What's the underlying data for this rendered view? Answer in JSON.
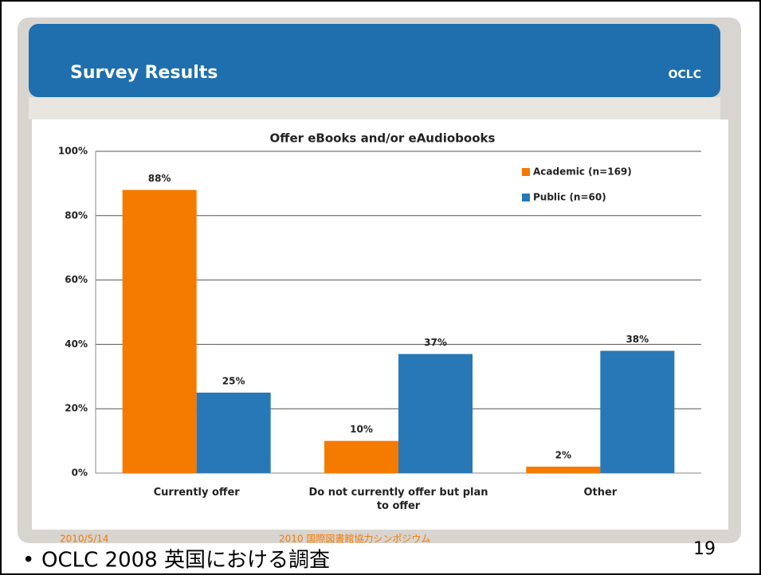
{
  "slide": {
    "title": "Survey Results",
    "logo": "OCLC",
    "date": "2010/5/14",
    "footer": "2010 国際図書館協力シンポジウム",
    "page": "19",
    "bullet": "OCLC 2008 英国における調査"
  },
  "chart_data": {
    "type": "bar",
    "title": "Offer eBooks and/or eAudiobooks",
    "categories": [
      "Currently offer",
      "Do not currently offer but plan to offer",
      "Other"
    ],
    "series": [
      {
        "name": "Academic (n=169)",
        "color": "#f47a00",
        "values": [
          88,
          10,
          2
        ],
        "value_labels": [
          "88%",
          "10%",
          "2%"
        ]
      },
      {
        "name": "Public (n=60)",
        "color": "#2878b8",
        "values": [
          25,
          37,
          38
        ],
        "value_labels": [
          "25%",
          "37%",
          "38%"
        ]
      }
    ],
    "ylim": [
      0,
      100
    ],
    "yticks": [
      {
        "value": 0,
        "label": "0%"
      },
      {
        "value": 20,
        "label": "20%"
      },
      {
        "value": 40,
        "label": "40%"
      },
      {
        "value": 60,
        "label": "60%"
      },
      {
        "value": 80,
        "label": "80%"
      },
      {
        "value": 100,
        "label": "100%"
      }
    ],
    "grid": true,
    "legend": "top-right"
  }
}
